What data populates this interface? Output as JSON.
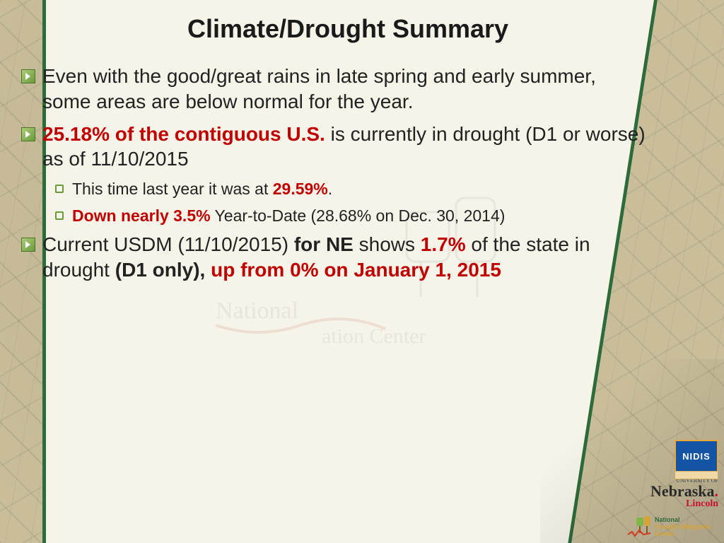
{
  "title": "Climate/Drought Summary",
  "colors": {
    "background": "#c9bd9a",
    "paper": "#f6f3e8",
    "paper_border": "#2d6b3a",
    "text": "#222222",
    "emphasis": "#c00000",
    "bullet_gradient_top": "#aecb7a",
    "bullet_gradient_bottom": "#6a9b3a"
  },
  "typography": {
    "title_fontsize": 36,
    "body_fontsize": 28,
    "sub_fontsize": 23,
    "font_family": "Verdana"
  },
  "bullets": [
    {
      "text_parts": [
        {
          "t": "Even with the good/great rains in late spring and early summer, some areas are below normal for the year."
        }
      ]
    },
    {
      "text_parts": [
        {
          "t": "25.18% of the contiguous U.S.",
          "red": true
        },
        {
          "t": " is currently in drought (D1 or worse) as of 11/10/2015"
        }
      ],
      "sub": [
        {
          "text_parts": [
            {
              "t": "This time last year it was at "
            },
            {
              "t": "29.59%",
              "red": true
            },
            {
              "t": "."
            }
          ]
        },
        {
          "text_parts": [
            {
              "t": "Down nearly 3.5%",
              "red": true
            },
            {
              "t": " Year-to-Date (28.68% on Dec. 30, 2014)"
            }
          ]
        }
      ]
    },
    {
      "text_parts": [
        {
          "t": "Current USDM (11/10/2015) "
        },
        {
          "t": "for NE",
          "bold": true
        },
        {
          "t": " shows "
        },
        {
          "t": "1.7%",
          "red": true
        },
        {
          "t": " of the state in drought "
        },
        {
          "t": "(D1 only), ",
          "bold": true
        },
        {
          "t": "up from 0% on January 1, 2015",
          "red": true
        }
      ]
    }
  ],
  "watermark": "National Drought Mitigation Center",
  "logos": {
    "nidis": "NIDIS",
    "nebraska_top": "UNIVERSITY OF",
    "nebraska_mid": "Nebraska",
    "nebraska_bot": "Lincoln",
    "ndmc_top": "National",
    "ndmc_bot": "Drought Mitigation Center"
  }
}
